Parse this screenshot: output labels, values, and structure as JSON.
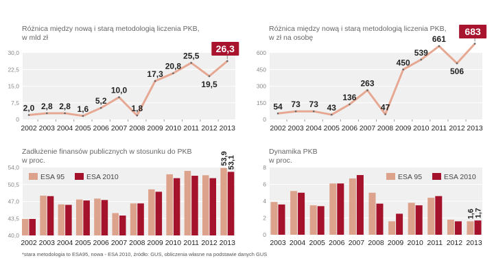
{
  "footnote": "*stara metodologia to ESA95, nowa - ESA 2010, źródło: GUS, obliczenia własne na podstawie danych GUS",
  "colors": {
    "line": "#e6a892",
    "esa95": "#dda28b",
    "esa2010": "#a5122c",
    "highlight": "#a8142e",
    "plot_bg": "#f0f0f0"
  },
  "chart_data": [
    {
      "type": "line",
      "title": "Różnica między nową i starą metodologią liczenia PKB,",
      "subtitle": "w mld zł",
      "categories": [
        "2002",
        "2003",
        "2004",
        "2005",
        "2006",
        "2007",
        "2008",
        "2009",
        "2010",
        "2011",
        "2012",
        "2013"
      ],
      "values": [
        2.0,
        2.8,
        2.8,
        1.6,
        5.2,
        10.0,
        1.8,
        17.3,
        20.8,
        25.5,
        19.5,
        26.3
      ],
      "labels": [
        "2,0",
        "2,8",
        "2,8",
        "1,6",
        "5,2",
        "10,0",
        "1,8",
        "17,3",
        "20,8",
        "25,5",
        "19,5",
        "26,3"
      ],
      "label_pos": [
        "above",
        "above",
        "above",
        "above",
        "above",
        "above",
        "above",
        "above",
        "above",
        "above",
        "below",
        "box"
      ],
      "yticks": [
        "0",
        "7,5",
        "15,0",
        "22,5",
        "30,0"
      ],
      "ytick_values": [
        0,
        7.5,
        15,
        22.5,
        30
      ],
      "ylim": [
        0,
        30
      ]
    },
    {
      "type": "line",
      "title": "Różnica między nową i starą metodologią liczenia PKB,",
      "subtitle": "w zł na osobę",
      "categories": [
        "2002",
        "2003",
        "2004",
        "2005",
        "2006",
        "2007",
        "2008",
        "2009",
        "2010",
        "2011",
        "2012",
        "2013"
      ],
      "values": [
        54,
        73,
        73,
        43,
        136,
        263,
        47,
        450,
        539,
        661,
        506,
        683
      ],
      "labels": [
        "54",
        "73",
        "73",
        "43",
        "136",
        "263",
        "47",
        "450",
        "539",
        "661",
        "506",
        "683"
      ],
      "label_pos": [
        "above",
        "above",
        "above",
        "above",
        "above",
        "above",
        "above",
        "above",
        "above",
        "above",
        "below",
        "box"
      ],
      "yticks": [
        "0",
        "150",
        "300",
        "450",
        "600"
      ],
      "ytick_values": [
        0,
        150,
        300,
        450,
        600
      ],
      "ylim": [
        0,
        600
      ]
    },
    {
      "type": "bar",
      "title": "Zadłużenie finansów publicznych w stosunku do PKB",
      "subtitle": "w proc.",
      "legend": [
        "ESA 95",
        "ESA 2010"
      ],
      "legend_placement": "top-left",
      "categories": [
        "2002",
        "2003",
        "2004",
        "2005",
        "2006",
        "2007",
        "2008",
        "2009",
        "2010",
        "2011",
        "2012",
        "2013"
      ],
      "series": [
        {
          "name": "ESA 95",
          "values": [
            43.4,
            48.2,
            46.4,
            47.4,
            47.6,
            44.6,
            46.6,
            49.5,
            52.6,
            53.3,
            52.4,
            53.9
          ]
        },
        {
          "name": "ESA 2010",
          "values": [
            43.4,
            48.1,
            46.3,
            47.2,
            47.3,
            44.1,
            46.6,
            49.0,
            51.8,
            52.3,
            51.8,
            53.1
          ]
        }
      ],
      "last_labels": [
        "53,9",
        "53,1"
      ],
      "yticks": [
        "40,0",
        "43,5",
        "47,0",
        "50,5",
        "54,0"
      ],
      "ytick_values": [
        40,
        43.5,
        47,
        50.5,
        54
      ],
      "ylim": [
        40,
        54
      ]
    },
    {
      "type": "bar",
      "title": "Dynamika PKB",
      "subtitle": "w proc.",
      "legend": [
        "ESA 95",
        "ESA 2010"
      ],
      "legend_placement": "top-right",
      "categories": [
        "2003",
        "2004",
        "2005",
        "2006",
        "2007",
        "2008",
        "2009",
        "2010",
        "2011",
        "2012",
        "2013"
      ],
      "series": [
        {
          "name": "ESA 95",
          "values": [
            3.9,
            5.2,
            3.5,
            6.1,
            6.7,
            5.0,
            1.6,
            3.8,
            4.4,
            1.8,
            1.6
          ]
        },
        {
          "name": "ESA 2010",
          "values": [
            3.6,
            5.0,
            3.4,
            6.1,
            7.1,
            3.7,
            2.5,
            3.5,
            4.6,
            1.6,
            1.7
          ]
        }
      ],
      "last_labels": [
        "1,6",
        "1,7"
      ],
      "yticks": [
        "0",
        "2",
        "4",
        "6",
        "8"
      ],
      "ytick_values": [
        0,
        2,
        4,
        6,
        8
      ],
      "ylim": [
        0,
        8
      ]
    }
  ]
}
